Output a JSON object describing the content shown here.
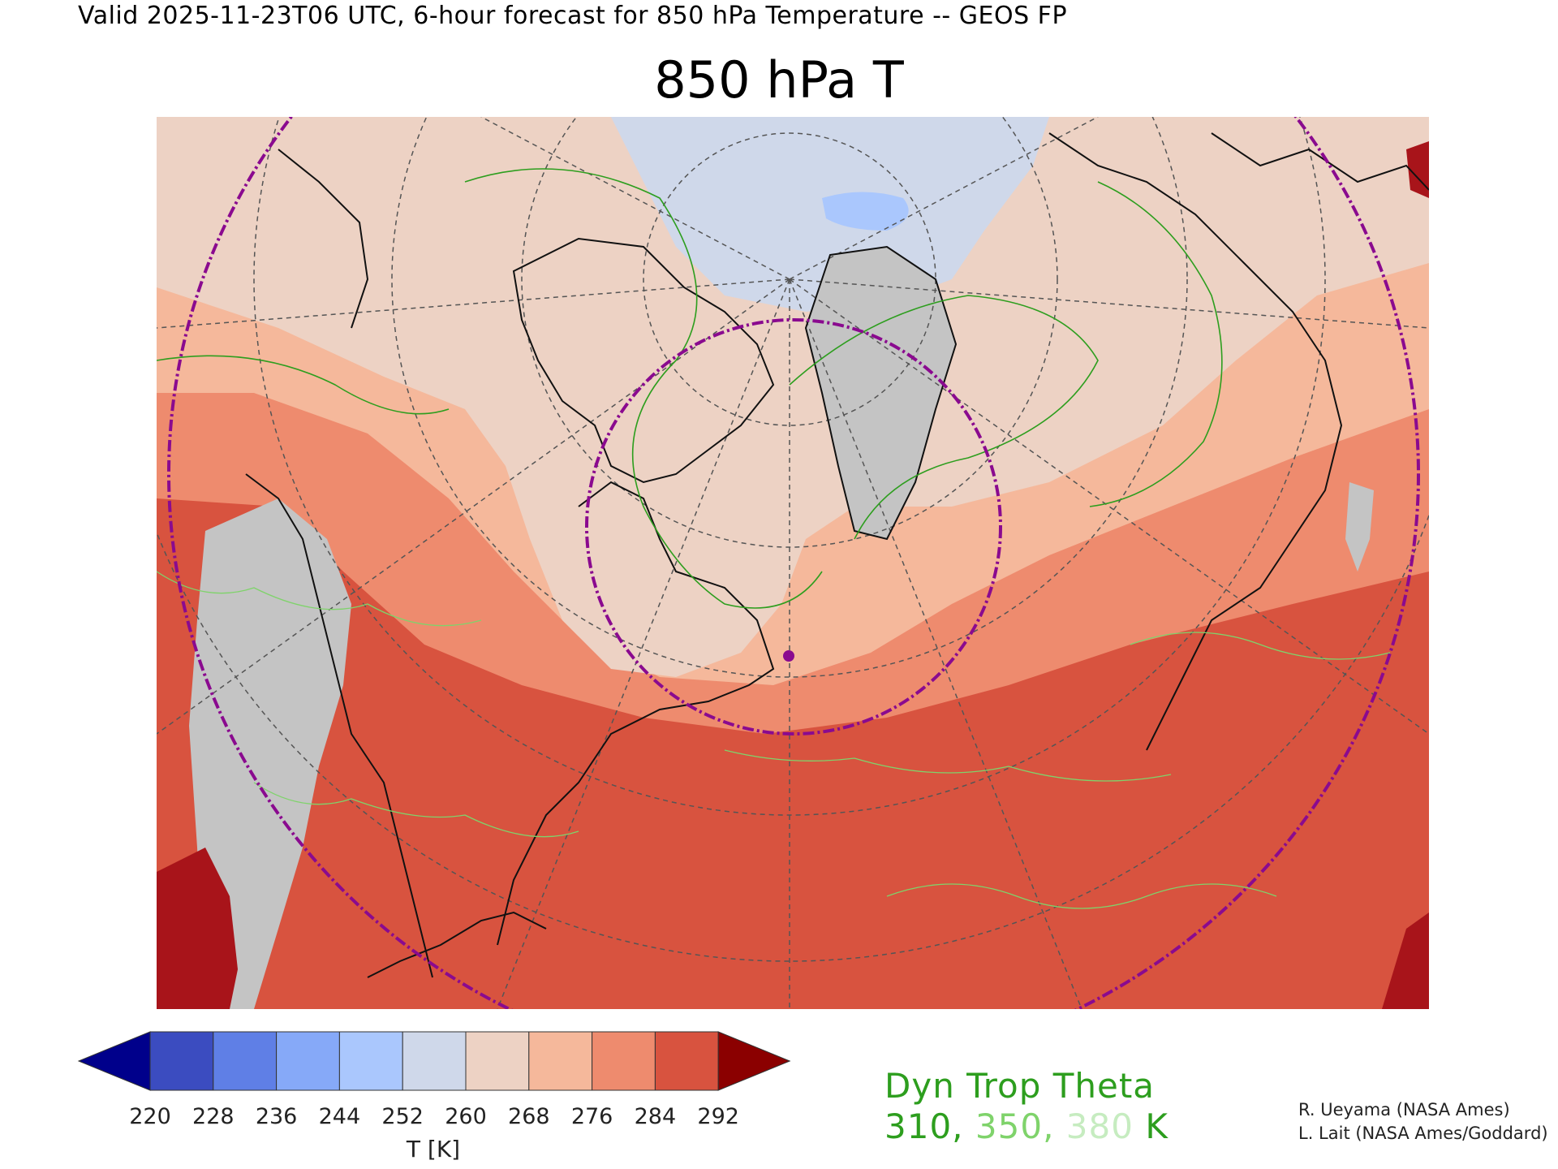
{
  "header": "Valid 2025-11-23T06 UTC, 6-hour forecast for 850 hPa Temperature -- GEOS FP",
  "title": "850 hPa T",
  "colorbar": {
    "ticks": [
      "220",
      "228",
      "236",
      "244",
      "252",
      "260",
      "268",
      "276",
      "284",
      "292"
    ],
    "units": "T [K]",
    "colors": [
      "#00008b",
      "#3b4cc0",
      "#5f7fe6",
      "#86a9f8",
      "#aac7fd",
      "#cfd8ea",
      "#edd2c4",
      "#f5b89b",
      "#ee8b6e",
      "#d8533f",
      "#8b0000"
    ]
  },
  "dyn_trop": {
    "title": "Dyn Trop Theta",
    "v1": "310",
    "sep1": ",",
    "v2": "350",
    "sep2": ",",
    "v3": "380",
    "unit": "K",
    "colors": {
      "v1": "#2d9e1e",
      "v2": "#7fd36b",
      "v3": "#c6ecc0"
    }
  },
  "credits": {
    "line1": "R. Ueyama (NASA Ames)",
    "line2": "L. Lait (NASA Ames/Goddard)"
  },
  "map": {
    "palette": {
      "cool_ice": "#cfd8ea",
      "blue_pool": "#aac7fd",
      "pale": "#edd2c4",
      "light_salmon": "#f5b89b",
      "salmon": "#ee8b6e",
      "red": "#d8533f",
      "dark_red": "#a8141a",
      "gray_mask": "#c4c4c4",
      "purple_ring": "#8a0a8f",
      "coast": "#111111",
      "grid": "#555555"
    },
    "marker": "purple-dot"
  }
}
